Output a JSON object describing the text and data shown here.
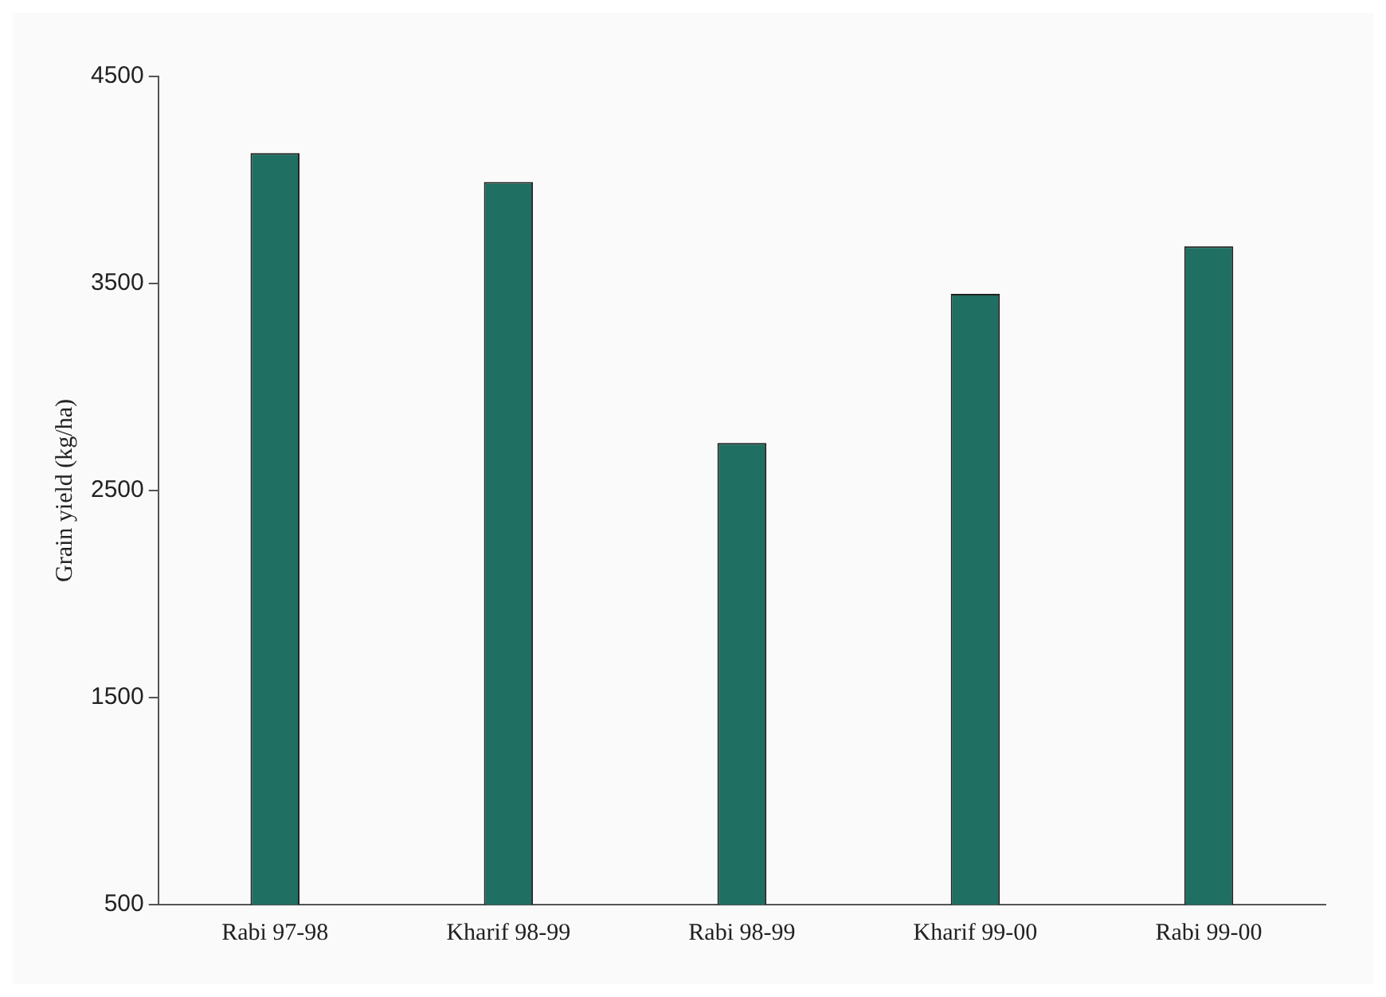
{
  "chart_data": {
    "type": "bar",
    "ylabel": "Grain yield (kg/ha)",
    "categories": [
      "Rabi 97-98",
      "Kharif 98-99",
      "Rabi 98-99",
      "Kharif 99-00",
      "Rabi 99-00"
    ],
    "values": [
      4130,
      3990,
      2730,
      3450,
      3680
    ],
    "color": "#1f6f62",
    "ylim": [
      500,
      4500
    ],
    "yticks": [
      500,
      1500,
      2500,
      3500,
      4500
    ],
    "grid": false,
    "legend": false
  }
}
